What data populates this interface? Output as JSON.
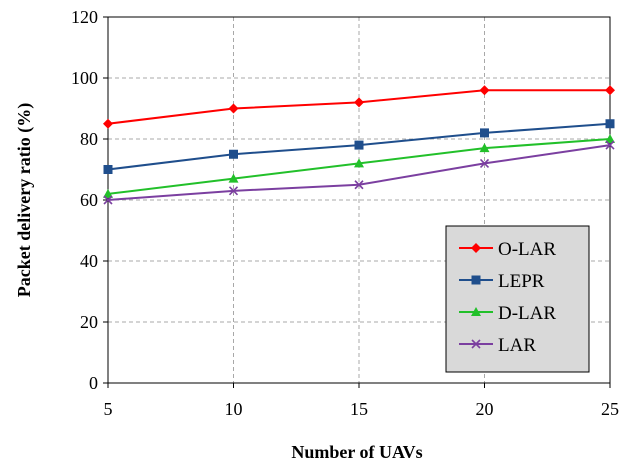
{
  "chart_data": {
    "type": "line",
    "title": "",
    "xlabel": "Number of UAVs",
    "ylabel": "Packet delivery ratio  (%)",
    "x": [
      5,
      10,
      15,
      20,
      25
    ],
    "xlim": [
      5,
      25
    ],
    "ylim": [
      0,
      120
    ],
    "x_ticks": [
      "5",
      "10",
      "15",
      "20",
      "25"
    ],
    "y_ticks": [
      "0",
      "20",
      "40",
      "60",
      "80",
      "100",
      "120"
    ],
    "grid": true,
    "legend_position": "bottom-right",
    "series": [
      {
        "name": "O-LAR",
        "values": [
          85,
          90,
          92,
          96,
          96
        ],
        "color": "#ff0000",
        "marker": "diamond"
      },
      {
        "name": "LEPR",
        "values": [
          70,
          75,
          78,
          82,
          85
        ],
        "color": "#1f4e8c",
        "marker": "square"
      },
      {
        "name": "D-LAR",
        "values": [
          62,
          67,
          72,
          77,
          80
        ],
        "color": "#22c02a",
        "marker": "triangle"
      },
      {
        "name": "LAR",
        "values": [
          60,
          63,
          65,
          72,
          78
        ],
        "color": "#7b3fa0",
        "marker": "x"
      }
    ]
  }
}
